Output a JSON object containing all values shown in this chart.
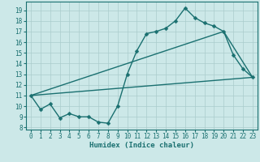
{
  "background_color": "#cce8e8",
  "grid_color": "#aacccc",
  "line_color": "#1a7070",
  "xlabel": "Humidex (Indice chaleur)",
  "xlim": [
    -0.5,
    23.5
  ],
  "ylim": [
    7.8,
    19.8
  ],
  "yticks": [
    8,
    9,
    10,
    11,
    12,
    13,
    14,
    15,
    16,
    17,
    18,
    19
  ],
  "xticks": [
    0,
    1,
    2,
    3,
    4,
    5,
    6,
    7,
    8,
    9,
    10,
    11,
    12,
    13,
    14,
    15,
    16,
    17,
    18,
    19,
    20,
    21,
    22,
    23
  ],
  "line1": {
    "x": [
      0,
      1,
      2,
      3,
      4,
      5,
      6,
      7,
      8,
      9,
      10,
      11,
      12,
      13,
      14,
      15,
      16,
      17,
      18,
      19,
      20,
      21,
      22,
      23
    ],
    "y": [
      11.0,
      9.7,
      10.2,
      8.9,
      9.3,
      9.0,
      9.0,
      8.5,
      8.4,
      10.0,
      13.0,
      15.2,
      16.8,
      17.0,
      17.3,
      18.0,
      19.2,
      18.3,
      17.8,
      17.5,
      17.0,
      14.8,
      13.5,
      12.7
    ]
  },
  "line2": {
    "x": [
      0,
      23
    ],
    "y": [
      11.0,
      12.7
    ]
  },
  "line3": {
    "x": [
      0,
      20,
      23
    ],
    "y": [
      11.0,
      17.0,
      12.7
    ]
  },
  "marker_size": 2.5,
  "line_width": 1.0,
  "tick_fontsize": 5.5,
  "xlabel_fontsize": 6.5
}
